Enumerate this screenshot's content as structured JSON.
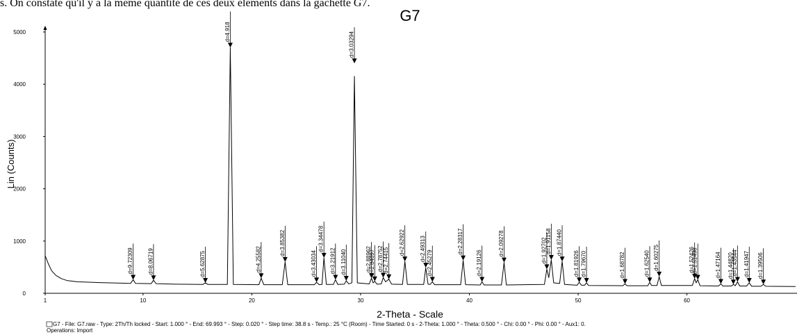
{
  "page_text": "s. On constate qu'il y a la même quantité de ces deux éléments dans la gachette G7.",
  "chart_data": {
    "type": "line",
    "title": "G7",
    "x_label": "2-Theta - Scale",
    "y_label": "Lin (Counts)",
    "footer": [
      "G7 - File: G7.raw - Type: 2Th/Th locked - Start: 1.000 ° - End: 69.993 ° - Step: 0.020 ° - Step time: 38.8 s - Temp.: 25 °C (Room) - Time Started: 0 s - 2-Theta: 1.000 ° - Theta: 0.500 ° - Chi: 0.00 ° - Phi: 0.00 ° - Aux1: 0.",
      "Operations: Import"
    ],
    "xlim": [
      1,
      69.993
    ],
    "ylim": [
      0,
      5000
    ],
    "xticks": [
      1,
      10,
      20,
      30,
      40,
      50,
      60
    ],
    "yticks": [
      0,
      1000,
      2000,
      3000,
      4000,
      5000
    ],
    "grid": false,
    "series": [
      {
        "name": "G7",
        "color": "#000000",
        "x": [
          1,
          1.3,
          1.6,
          2,
          2.5,
          3,
          4,
          6,
          8,
          8.85,
          9.09,
          9.3,
          10.75,
          10.96,
          11.2,
          13,
          15.5,
          15.73,
          15.95,
          17.75,
          18.02,
          18.3,
          20.65,
          20.86,
          21.1,
          22.8,
          23.06,
          23.3,
          25.75,
          25.95,
          26.2,
          26.45,
          26.63,
          26.85,
          27.5,
          27.69,
          27.9,
          28.5,
          28.68,
          28.9,
          29.2,
          29.43,
          29.7,
          30.8,
          31.0,
          31.15,
          31.3,
          31.5,
          31.9,
          32.08,
          32.3,
          32.6,
          32.85,
          33.85,
          34.07,
          34.3,
          35.8,
          35.99,
          36.2,
          36.4,
          36.6,
          36.8,
          39.2,
          39.43,
          39.65,
          41.0,
          41.16,
          41.35,
          42.95,
          43.19,
          43.4,
          46.9,
          47.12,
          47.3,
          47.53,
          47.75,
          48.3,
          48.53,
          48.75,
          49.9,
          50.1,
          50.3,
          50.6,
          50.77,
          50.95,
          54.1,
          54.31,
          54.5,
          56.4,
          56.58,
          56.75,
          57.25,
          57.45,
          57.65,
          60.5,
          60.71,
          60.85,
          61.0,
          61.2,
          62.9,
          63.12,
          63.3,
          64.1,
          64.27,
          64.45,
          64.65,
          64.85,
          65.5,
          65.73,
          65.95,
          66.8,
          67.03,
          67.25,
          69.99
        ],
        "values": [
          720,
          560,
          430,
          340,
          280,
          245,
          220,
          205,
          195,
          190,
          260,
          190,
          185,
          250,
          185,
          175,
          170,
          200,
          170,
          170,
          4700,
          170,
          165,
          290,
          165,
          165,
          600,
          165,
          165,
          210,
          165,
          170,
          680,
          170,
          170,
          260,
          170,
          175,
          240,
          180,
          200,
          4150,
          200,
          180,
          290,
          200,
          230,
          175,
          180,
          300,
          220,
          270,
          175,
          170,
          610,
          170,
          170,
          490,
          175,
          170,
          220,
          165,
          165,
          630,
          165,
          160,
          220,
          160,
          160,
          590,
          160,
          170,
          460,
          300,
          640,
          200,
          190,
          610,
          170,
          155,
          210,
          155,
          155,
          200,
          150,
          145,
          180,
          145,
          145,
          210,
          150,
          150,
          320,
          150,
          150,
          280,
          200,
          260,
          145,
          140,
          180,
          140,
          140,
          170,
          145,
          220,
          140,
          140,
          200,
          135,
          135,
          170,
          135,
          130
        ]
      }
    ],
    "annotations": [
      {
        "text": "d=9.72309",
        "x": 9.09,
        "y": 260
      },
      {
        "text": "d=8.06719",
        "x": 10.96,
        "y": 250
      },
      {
        "text": "d=5.62875",
        "x": 15.73,
        "y": 200
      },
      {
        "text": "d=4.918",
        "x": 18.02,
        "y": 4700
      },
      {
        "text": "d=4.25582",
        "x": 20.86,
        "y": 290
      },
      {
        "text": "d=3.85382",
        "x": 23.06,
        "y": 600
      },
      {
        "text": "d=3.43034",
        "x": 25.95,
        "y": 210
      },
      {
        "text": "d=3.34478",
        "x": 26.63,
        "y": 680
      },
      {
        "text": "d=3.21912",
        "x": 27.69,
        "y": 260
      },
      {
        "text": "d=3.11040",
        "x": 28.68,
        "y": 240
      },
      {
        "text": "d=3.03294",
        "x": 29.43,
        "y": 4400
      },
      {
        "text": "d=2.88962",
        "x": 31.0,
        "y": 290
      },
      {
        "text": "d=2.84897",
        "x": 31.3,
        "y": 230
      },
      {
        "text": "d=2.78752",
        "x": 32.08,
        "y": 300
      },
      {
        "text": "d=2.74415",
        "x": 32.6,
        "y": 270
      },
      {
        "text": "d=2.62922",
        "x": 34.07,
        "y": 610
      },
      {
        "text": "d=2.49313",
        "x": 35.99,
        "y": 490
      },
      {
        "text": "d=2.45279",
        "x": 36.6,
        "y": 220
      },
      {
        "text": "d=2.28317",
        "x": 39.43,
        "y": 630
      },
      {
        "text": "d=2.19126",
        "x": 41.16,
        "y": 220
      },
      {
        "text": "d=2.09278",
        "x": 43.19,
        "y": 590
      },
      {
        "text": "d=1.92702",
        "x": 47.12,
        "y": 460
      },
      {
        "text": "d=1.91158",
        "x": 47.53,
        "y": 640
      },
      {
        "text": "d=1.87440",
        "x": 48.53,
        "y": 610
      },
      {
        "text": "d=1.81926",
        "x": 50.1,
        "y": 210
      },
      {
        "text": "d=1.79670",
        "x": 50.77,
        "y": 200
      },
      {
        "text": "d=1.68782",
        "x": 54.31,
        "y": 180
      },
      {
        "text": "d=1.62540",
        "x": 56.58,
        "y": 210
      },
      {
        "text": "d=1.60275",
        "x": 57.45,
        "y": 320
      },
      {
        "text": "d=1.52426",
        "x": 60.71,
        "y": 280
      },
      {
        "text": "d=1.51498",
        "x": 61.0,
        "y": 260
      },
      {
        "text": "d=1.47164",
        "x": 63.12,
        "y": 180
      },
      {
        "text": "d=1.44820",
        "x": 64.27,
        "y": 170
      },
      {
        "text": "d=1.43544",
        "x": 64.65,
        "y": 220
      },
      {
        "text": "d=1.41947",
        "x": 65.73,
        "y": 200
      },
      {
        "text": "d=1.39506",
        "x": 67.03,
        "y": 170
      }
    ]
  }
}
